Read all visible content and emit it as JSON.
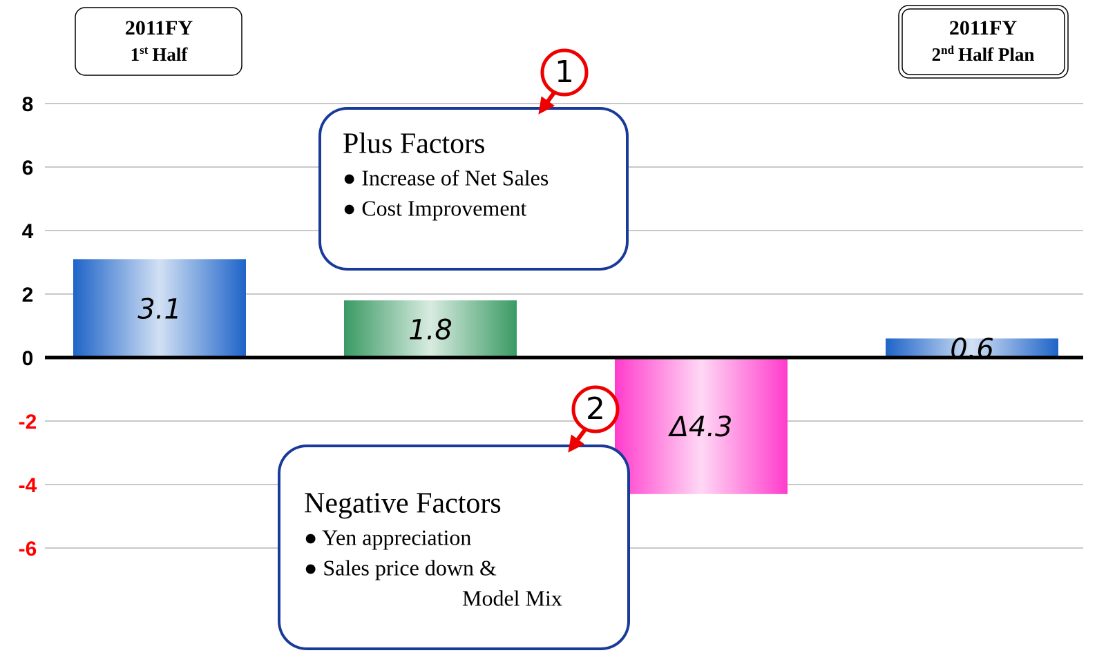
{
  "chart_data": {
    "type": "bar",
    "categories": [
      null,
      null,
      null,
      null
    ],
    "values": [
      3.1,
      1.8,
      -4.3,
      0.6
    ],
    "value_labels": [
      "3.1",
      "1.8",
      "Δ4.3",
      "0.6"
    ],
    "colors": [
      "#1e64c8",
      "#3a9a64",
      "#ff3ccc",
      "#1e64c8"
    ],
    "ylim": [
      -9,
      9
    ],
    "yticks": [
      -6,
      -4,
      -2,
      0,
      2,
      4,
      6,
      8
    ],
    "negative_tick_color": "#ff0000",
    "grid": true,
    "period_boxes": [
      {
        "title": "2011FY",
        "ordinal": "1",
        "suffix": "st",
        "label": "Half"
      },
      {
        "title": "2011FY",
        "ordinal": "2",
        "suffix": "nd",
        "label": "Half Plan"
      }
    ],
    "callouts": [
      {
        "marker": "1",
        "title": "Plus Factors",
        "items": [
          "● Increase of Net Sales",
          "● Cost Improvement"
        ]
      },
      {
        "marker": "2",
        "title": "Negative Factors",
        "items": [
          "● Yen appreciation",
          "● Sales price down &",
          "Model Mix"
        ]
      }
    ]
  }
}
